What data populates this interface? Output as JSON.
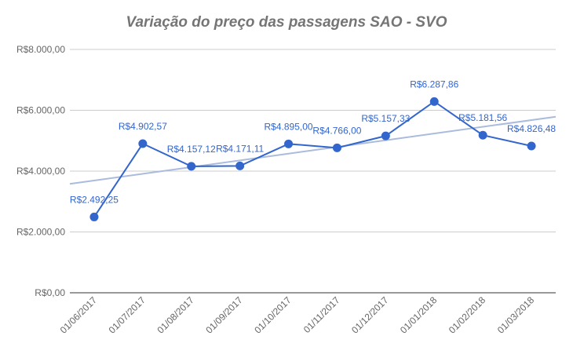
{
  "chart_data": {
    "type": "line",
    "title": "Variação do preço das passagens SAO - SVO",
    "xlabel": "",
    "ylabel": "",
    "categories": [
      "01/06/2017",
      "01/07/2017",
      "01/08/2017",
      "01/09/2017",
      "01/10/2017",
      "01/11/2017",
      "01/12/2017",
      "01/01/2018",
      "01/02/2018",
      "01/03/2018"
    ],
    "series": [
      {
        "values": [
          2492.25,
          4902.57,
          4157.12,
          4171.11,
          4895.0,
          4766.0,
          5157.33,
          6287.86,
          5181.56,
          4826.48
        ],
        "data_labels": [
          "R$2.492,25",
          "R$4.902,57",
          "R$4.157,12",
          "R$4.171,11",
          "R$4.895,00",
          "R$4.766,00",
          "R$5.157,33",
          "R$6.287,86",
          "R$5.181,56",
          "R$4.826,48"
        ],
        "color": "#3366cc"
      }
    ],
    "trendline": {
      "type": "linear",
      "color": "#aabbdd"
    },
    "ylim": [
      0,
      8000
    ],
    "yticks": [
      0,
      2000,
      4000,
      6000,
      8000
    ],
    "ytick_labels": [
      "R$0,00",
      "R$2.000,00",
      "R$4.000,00",
      "R$6.000,00",
      "R$8.000,00"
    ],
    "grid": true,
    "legend": "none"
  }
}
